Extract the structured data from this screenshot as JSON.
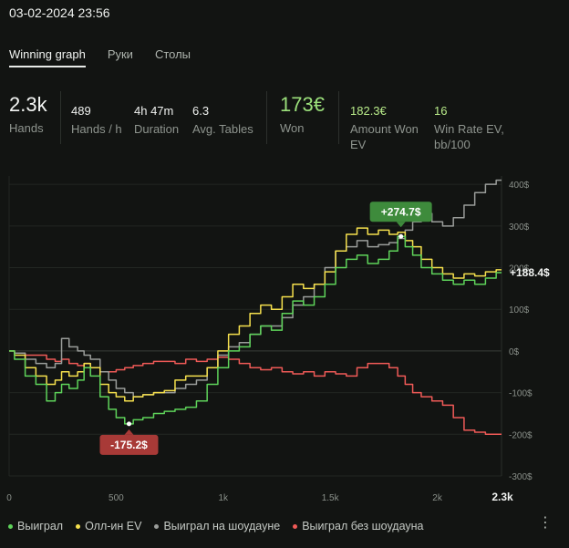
{
  "header": {
    "timestamp": "03-02-2024 23:56"
  },
  "tabs": [
    {
      "label": "Winning graph",
      "active": true
    },
    {
      "label": "Руки",
      "active": false
    },
    {
      "label": "Столы",
      "active": false
    }
  ],
  "stats": {
    "hands": {
      "value": "2.3k",
      "label": "Hands"
    },
    "hands_per_hour": {
      "value": "489",
      "label": "Hands / h"
    },
    "duration": {
      "value": "4h 47m",
      "label": "Duration"
    },
    "avg_tables": {
      "value": "6.3",
      "label": "Avg. Tables"
    },
    "won": {
      "value": "173€",
      "label": "Won"
    },
    "amount_won_ev": {
      "value": "182.3€",
      "label_1": "Amount Won",
      "label_2": "EV"
    },
    "win_rate_ev": {
      "value": "16",
      "label_1": "Win Rate EV,",
      "label_2": "bb/100"
    }
  },
  "legend": [
    {
      "label": "Выиграл",
      "color": "#5ed35a"
    },
    {
      "label": "Олл-ин EV",
      "color": "#f5e04d"
    },
    {
      "label": "Выиграл на шоудауне",
      "color": "#9a9d9a"
    },
    {
      "label": "Выиграл без шоудауна",
      "color": "#ef5a57"
    }
  ],
  "chart_data": {
    "type": "line",
    "x_ticks": [
      "0",
      "500",
      "1k",
      "1.5k",
      "2k",
      "2.3k"
    ],
    "x_tick_values": [
      0,
      500,
      1000,
      1500,
      2000,
      2300
    ],
    "y_ticks": [
      "400$",
      "300$",
      "200$",
      "100$",
      "0$",
      "-100$",
      "-200$",
      "-300$"
    ],
    "y_tick_values": [
      400,
      300,
      200,
      100,
      0,
      -100,
      -200,
      -300
    ],
    "ylim": [
      -300,
      420
    ],
    "xlim": [
      0,
      2300
    ],
    "annotations": {
      "max": {
        "label": "+274.7$",
        "x": 1830,
        "y": 275,
        "color": "#3e8b3c"
      },
      "min": {
        "label": "-175.2$",
        "x": 560,
        "y": -175,
        "color": "#a83a37"
      },
      "end": {
        "label": "+188.4$"
      }
    },
    "series": [
      {
        "name": "Выиграл",
        "color": "#5ed35a",
        "x": [
          0,
          50,
          100,
          150,
          200,
          230,
          260,
          300,
          340,
          360,
          400,
          450,
          480,
          520,
          560,
          600,
          650,
          700,
          750,
          800,
          850,
          900,
          950,
          1000,
          1050,
          1100,
          1150,
          1200,
          1250,
          1300,
          1350,
          1400,
          1450,
          1500,
          1550,
          1600,
          1650,
          1700,
          1750,
          1800,
          1830,
          1870,
          1900,
          1950,
          2000,
          2050,
          2100,
          2150,
          2200,
          2250,
          2300
        ],
        "y": [
          0,
          -20,
          -60,
          -80,
          -120,
          -100,
          -80,
          -90,
          -70,
          -40,
          -60,
          -110,
          -140,
          -160,
          -175,
          -165,
          -160,
          -150,
          -145,
          -140,
          -135,
          -120,
          -80,
          -40,
          0,
          10,
          40,
          60,
          50,
          90,
          120,
          110,
          130,
          160,
          200,
          220,
          230,
          210,
          220,
          240,
          275,
          250,
          230,
          200,
          185,
          170,
          160,
          170,
          160,
          175,
          188
        ]
      },
      {
        "name": "Олл-ин EV",
        "color": "#f5e04d",
        "x": [
          0,
          50,
          100,
          150,
          200,
          230,
          260,
          300,
          340,
          360,
          400,
          450,
          480,
          520,
          560,
          600,
          650,
          700,
          750,
          800,
          850,
          900,
          950,
          1000,
          1050,
          1100,
          1150,
          1200,
          1250,
          1300,
          1350,
          1400,
          1450,
          1500,
          1550,
          1600,
          1650,
          1700,
          1750,
          1800,
          1830,
          1870,
          1900,
          1950,
          2000,
          2050,
          2100,
          2150,
          2200,
          2250,
          2300
        ],
        "y": [
          0,
          -10,
          -40,
          -60,
          -80,
          -70,
          -50,
          -60,
          -50,
          -30,
          -40,
          -80,
          -100,
          -110,
          -120,
          -110,
          -105,
          -100,
          -95,
          -70,
          -60,
          -60,
          -40,
          0,
          40,
          60,
          90,
          110,
          100,
          130,
          160,
          150,
          160,
          190,
          240,
          280,
          295,
          280,
          290,
          280,
          285,
          265,
          250,
          220,
          200,
          185,
          175,
          185,
          180,
          190,
          195
        ]
      },
      {
        "name": "Выиграл на шоудауне",
        "color": "#9a9d9a",
        "x": [
          0,
          50,
          100,
          150,
          200,
          230,
          260,
          300,
          340,
          360,
          400,
          450,
          480,
          520,
          560,
          600,
          650,
          700,
          750,
          800,
          850,
          900,
          950,
          1000,
          1050,
          1100,
          1150,
          1200,
          1250,
          1300,
          1350,
          1400,
          1450,
          1500,
          1550,
          1600,
          1650,
          1700,
          1750,
          1800,
          1830,
          1870,
          1900,
          1950,
          2000,
          2050,
          2100,
          2150,
          2200,
          2250,
          2300
        ],
        "y": [
          0,
          -5,
          -20,
          -30,
          -40,
          -30,
          30,
          10,
          0,
          -10,
          -20,
          -50,
          -70,
          -90,
          -100,
          -110,
          -105,
          -100,
          -100,
          -90,
          -80,
          -70,
          -40,
          -10,
          10,
          20,
          40,
          60,
          60,
          80,
          110,
          130,
          160,
          200,
          240,
          250,
          265,
          250,
          255,
          260,
          270,
          290,
          310,
          330,
          310,
          300,
          320,
          350,
          380,
          400,
          410
        ]
      },
      {
        "name": "Выиграл без шоудауна",
        "color": "#ef5a57",
        "x": [
          0,
          50,
          100,
          150,
          200,
          230,
          260,
          300,
          340,
          360,
          400,
          450,
          480,
          520,
          560,
          600,
          650,
          700,
          750,
          800,
          850,
          900,
          950,
          1000,
          1050,
          1100,
          1150,
          1200,
          1250,
          1300,
          1350,
          1400,
          1450,
          1500,
          1550,
          1600,
          1650,
          1700,
          1750,
          1800,
          1830,
          1870,
          1900,
          1950,
          2000,
          2050,
          2100,
          2150,
          2200,
          2250,
          2300
        ],
        "y": [
          0,
          -5,
          -10,
          -10,
          -20,
          -25,
          -20,
          -30,
          -35,
          -30,
          -40,
          -50,
          -50,
          -45,
          -40,
          -35,
          -30,
          -25,
          -25,
          -30,
          -20,
          -25,
          -20,
          -15,
          -20,
          -30,
          -40,
          -45,
          -40,
          -50,
          -55,
          -50,
          -60,
          -50,
          -55,
          -60,
          -40,
          -30,
          -30,
          -40,
          -60,
          -80,
          -100,
          -110,
          -120,
          -130,
          -160,
          -190,
          -195,
          -200,
          -200
        ]
      }
    ]
  }
}
